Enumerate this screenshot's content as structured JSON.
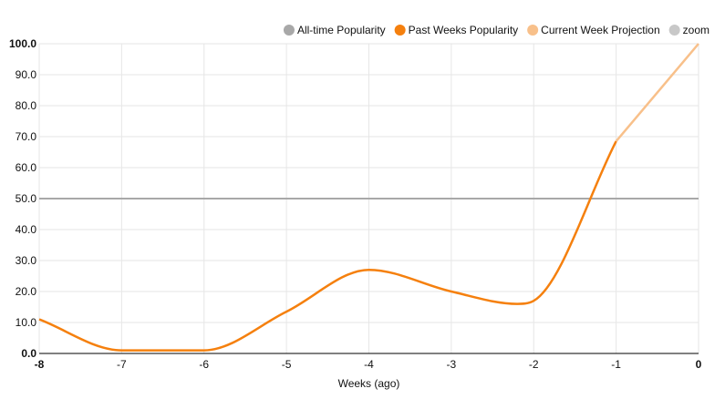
{
  "chart_data": {
    "type": "line",
    "xlabel": "Weeks (ago)",
    "ylabel": "",
    "xlim": [
      -8,
      0
    ],
    "ylim": [
      0,
      100
    ],
    "x_ticks": [
      "-8",
      "-7",
      "-6",
      "-5",
      "-4",
      "-3",
      "-2",
      "-1",
      "0"
    ],
    "y_ticks": [
      "0.0",
      "10.0",
      "20.0",
      "30.0",
      "40.0",
      "50.0",
      "60.0",
      "70.0",
      "80.0",
      "90.0",
      "100.0"
    ],
    "grid": true,
    "legend_position": "top-right",
    "legend": [
      {
        "name": "All-time Popularity",
        "color": "#a8a8a8"
      },
      {
        "name": "Past Weeks Popularity",
        "color": "#f5800e"
      },
      {
        "name": "Current Week Projection",
        "color": "#f8c08a"
      },
      {
        "name": "zoom",
        "color": "#c8c8c8"
      }
    ],
    "series": [
      {
        "name": "All-time Popularity",
        "color": "#a8a8a8",
        "x": [
          -8,
          0
        ],
        "y": [
          50,
          50
        ]
      },
      {
        "name": "Past Weeks Popularity",
        "color": "#f5800e",
        "x": [
          -8,
          -7,
          -6,
          -5,
          -4,
          -3,
          -2.2,
          -2,
          -1
        ],
        "y": [
          11,
          1,
          1,
          13.5,
          27,
          20,
          16,
          17,
          68.5
        ]
      },
      {
        "name": "Current Week Projection",
        "color": "#f8c08a",
        "x": [
          -1,
          0
        ],
        "y": [
          68.5,
          100
        ]
      }
    ]
  }
}
